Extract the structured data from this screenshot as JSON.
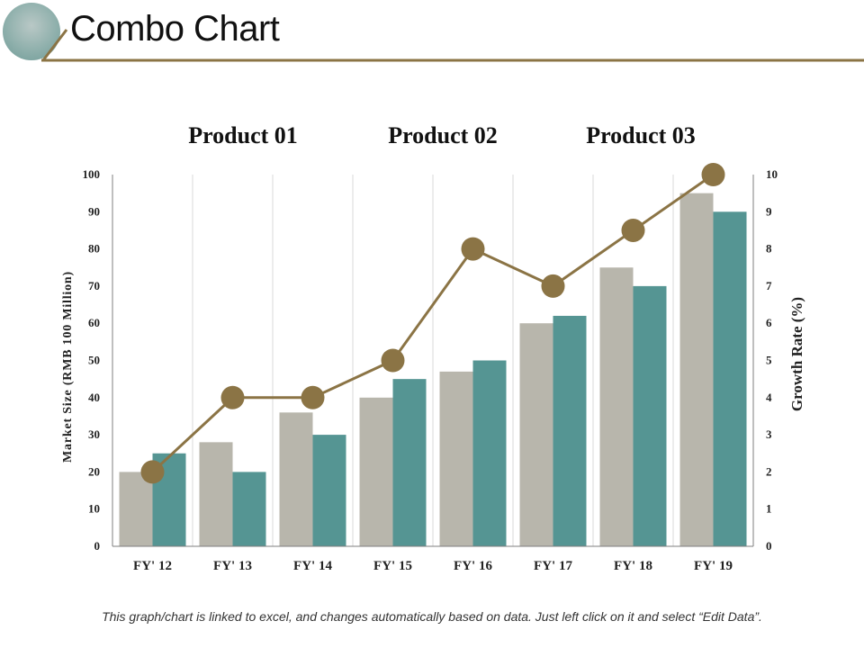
{
  "slide": {
    "title": "Combo Chart",
    "footer": "This graph/chart is linked to excel, and changes automatically based on data. Just left click on it and select “Edit Data”."
  },
  "colors": {
    "accent": "#8b7445",
    "series1": "#b8b6ac",
    "series2": "#559593",
    "line": "#8b7445",
    "gridline": "#d9d9d9",
    "axis": "#7f7f7f"
  },
  "chart_data": {
    "type": "bar",
    "categories": [
      "FY' 12",
      "FY' 13",
      "FY' 14",
      "FY' 15",
      "FY' 16",
      "FY' 17",
      "FY' 18",
      "FY' 19"
    ],
    "series": [
      {
        "name": "Product 01",
        "type": "bar",
        "axis": "left",
        "values": [
          20,
          28,
          36,
          40,
          47,
          60,
          75,
          95
        ]
      },
      {
        "name": "Product 02",
        "type": "bar",
        "axis": "left",
        "values": [
          25,
          20,
          30,
          45,
          50,
          62,
          70,
          90
        ]
      },
      {
        "name": "Product 03",
        "type": "line",
        "axis": "right",
        "values": [
          2,
          4,
          4,
          5,
          8,
          7,
          8.5,
          10
        ]
      }
    ],
    "ylabel": "Market Size (RMB 100 Million)",
    "ylabel2": "Growth Rate (%)",
    "ylim": [
      0,
      100
    ],
    "y2lim": [
      0,
      10
    ],
    "yticks": [
      "0",
      "10",
      "20",
      "30",
      "40",
      "50",
      "60",
      "70",
      "80",
      "90",
      "100"
    ],
    "y2ticks": [
      "0",
      "1",
      "2",
      "3",
      "4",
      "5",
      "6",
      "7",
      "8",
      "9",
      "10"
    ],
    "legend": "top",
    "grid": "vertical"
  }
}
